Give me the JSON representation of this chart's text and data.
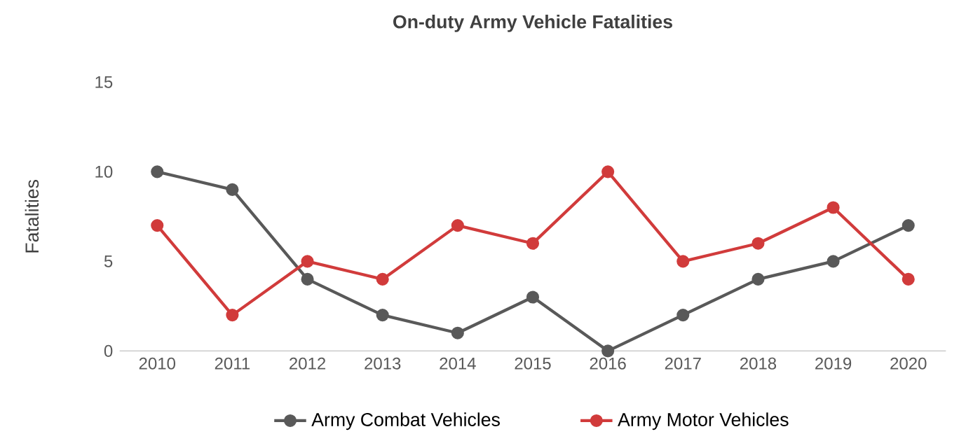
{
  "chart_data": {
    "type": "line",
    "title": "On-duty Army Vehicle Fatalities",
    "ylabel": "Fatalities",
    "categories": [
      "2010",
      "2011",
      "2012",
      "2013",
      "2014",
      "2015",
      "2016",
      "2017",
      "2018",
      "2019",
      "2020"
    ],
    "series": [
      {
        "name": "Army Combat Vehicles",
        "color": "#595959",
        "values": [
          10,
          9,
          4,
          2,
          1,
          3,
          0,
          2,
          4,
          5,
          7
        ]
      },
      {
        "name": "Army Motor Vehicles",
        "color": "#d13b3b",
        "values": [
          7,
          2,
          5,
          4,
          7,
          6,
          10,
          5,
          6,
          8,
          4
        ]
      }
    ],
    "ylim": [
      0,
      15
    ],
    "yticks": [
      0,
      5,
      10,
      15
    ],
    "grid": false,
    "legend": "bottom",
    "marker": "circle",
    "line_style": "solid"
  }
}
